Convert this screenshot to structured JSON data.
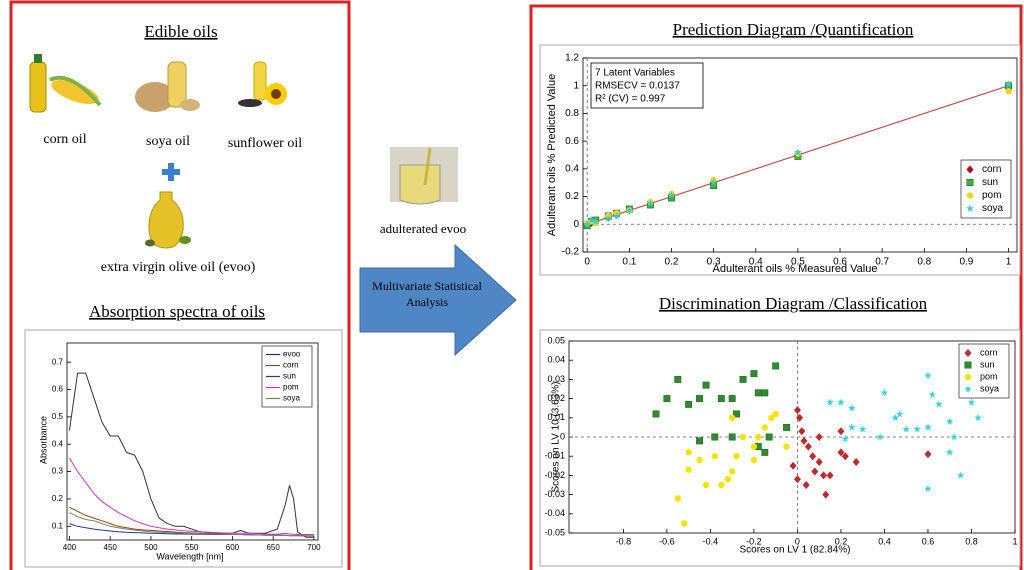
{
  "left_panel": {
    "title": "Edible oils",
    "items": [
      {
        "label": "corn oil"
      },
      {
        "label": "soya oil"
      },
      {
        "label": "sunflower oil"
      }
    ],
    "evoo_label": "extra virgin olive oil (evoo)",
    "spectra_title": "Absorption spectra of oils"
  },
  "middle": {
    "sample_label": "adulterated evoo",
    "arrow_label": "Multivariate Statistical Analysis"
  },
  "right_panel": {
    "prediction_title": "Prediction Diagram /Quantification",
    "discrimination_title": "Discrimination Diagram /Classification"
  },
  "chart_data": [
    {
      "type": "line",
      "x_label": "Wavelength [nm]",
      "y_label": "Absorbance",
      "x": [
        400,
        410,
        420,
        430,
        440,
        450,
        460,
        470,
        480,
        490,
        500,
        510,
        520,
        530,
        540,
        560,
        580,
        600,
        610,
        620,
        640,
        655,
        665,
        670,
        675,
        680,
        690,
        700
      ],
      "xlim": [
        397,
        705
      ],
      "ylim": [
        0.05,
        0.77
      ],
      "xticks": [
        400,
        450,
        500,
        550,
        600,
        650,
        700
      ],
      "yticks": [
        0.1,
        0.2,
        0.3,
        0.4,
        0.5,
        0.6,
        0.7
      ],
      "legend": "upper right",
      "series": [
        {
          "name": "evoo",
          "color": "#333333",
          "values": [
            0.45,
            0.66,
            0.66,
            0.57,
            0.48,
            0.43,
            0.43,
            0.37,
            0.36,
            0.3,
            0.2,
            0.13,
            0.11,
            0.1,
            0.1,
            0.08,
            0.075,
            0.075,
            0.085,
            0.075,
            0.075,
            0.09,
            0.18,
            0.25,
            0.2,
            0.08,
            0.06,
            0.06
          ]
        },
        {
          "name": "corn",
          "color": "#8b4513",
          "values": [
            0.17,
            0.155,
            0.14,
            0.13,
            0.12,
            0.11,
            0.1,
            0.095,
            0.09,
            0.087,
            0.085,
            0.083,
            0.081,
            0.079,
            0.077,
            0.075,
            0.073,
            0.07,
            0.07,
            0.069,
            0.068,
            0.067,
            0.067,
            0.066,
            0.066,
            0.066,
            0.065,
            0.065
          ]
        },
        {
          "name": "sun",
          "color": "#1f3a93",
          "values": [
            0.11,
            0.1,
            0.095,
            0.09,
            0.086,
            0.083,
            0.08,
            0.078,
            0.077,
            0.076,
            0.075,
            0.074,
            0.073,
            0.072,
            0.072,
            0.071,
            0.07,
            0.07,
            0.07,
            0.069,
            0.068,
            0.067,
            0.067,
            0.066,
            0.066,
            0.066,
            0.065,
            0.065
          ]
        },
        {
          "name": "pom",
          "color": "#cc33cc",
          "values": [
            0.35,
            0.3,
            0.26,
            0.22,
            0.19,
            0.17,
            0.15,
            0.135,
            0.12,
            0.11,
            0.1,
            0.095,
            0.09,
            0.087,
            0.084,
            0.08,
            0.077,
            0.075,
            0.075,
            0.074,
            0.072,
            0.071,
            0.075,
            0.072,
            0.071,
            0.07,
            0.07,
            0.07
          ]
        },
        {
          "name": "soya",
          "color": "#808060",
          "values": [
            0.15,
            0.135,
            0.125,
            0.12,
            0.11,
            0.1,
            0.095,
            0.09,
            0.086,
            0.083,
            0.08,
            0.078,
            0.077,
            0.076,
            0.075,
            0.073,
            0.072,
            0.07,
            0.07,
            0.069,
            0.068,
            0.067,
            0.067,
            0.066,
            0.066,
            0.066,
            0.065,
            0.065
          ]
        }
      ]
    },
    {
      "type": "scatter",
      "x_label": "Adulterant oils % Measured Value",
      "y_label": "Adulterant oils % Predicted Value",
      "annotation": [
        "7 Latent Variables",
        "RMSECV = 0.0137",
        "R² (CV) = 0.997"
      ],
      "xlim": [
        -0.01,
        1.02
      ],
      "ylim": [
        -0.2,
        1.2
      ],
      "xticks": [
        0,
        0.1,
        0.2,
        0.3,
        0.4,
        0.5,
        0.6,
        0.7,
        0.8,
        0.9,
        1
      ],
      "yticks": [
        -0.2,
        0,
        0.2,
        0.4,
        0.6,
        0.8,
        1,
        1.2
      ],
      "legend": "lower right",
      "zero_lines": true,
      "reference_line": {
        "color": "#c0504d",
        "x": [
          0,
          1
        ],
        "values": [
          0,
          1
        ]
      },
      "series": [
        {
          "name": "corn",
          "color": "#c00000",
          "marker": "diamond",
          "x": [
            0,
            0.01,
            0.02,
            0.05,
            0.07,
            0.1,
            0.15,
            0.2,
            0.3,
            0.5,
            1
          ],
          "values": [
            0,
            0.01,
            0.02,
            0.05,
            0.07,
            0.1,
            0.15,
            0.2,
            0.31,
            0.5,
            0.98
          ]
        },
        {
          "name": "sun",
          "color": "#3cb043",
          "marker": "square",
          "x": [
            0,
            0.01,
            0.02,
            0.05,
            0.07,
            0.1,
            0.15,
            0.2,
            0.3,
            0.5,
            1
          ],
          "values": [
            -0.01,
            0.02,
            0.03,
            0.06,
            0.08,
            0.11,
            0.14,
            0.19,
            0.28,
            0.49,
            1.0
          ]
        },
        {
          "name": "pom",
          "color": "#f2d21b",
          "marker": "circle",
          "x": [
            0,
            0.01,
            0.02,
            0.05,
            0.07,
            0.1,
            0.15,
            0.2,
            0.3,
            0.5,
            1
          ],
          "values": [
            0.01,
            0.02,
            0.01,
            0.06,
            0.08,
            0.1,
            0.16,
            0.22,
            0.32,
            0.51,
            0.96
          ]
        },
        {
          "name": "soya",
          "color": "#33cccc",
          "marker": "star",
          "x": [
            0,
            0.01,
            0.02,
            0.05,
            0.07,
            0.1,
            0.15,
            0.2,
            0.3,
            0.5,
            1
          ],
          "values": [
            0,
            0.03,
            0.02,
            0.04,
            0.06,
            0.1,
            0.15,
            0.21,
            0.3,
            0.52,
            1.01
          ]
        }
      ]
    },
    {
      "type": "scatter",
      "x_label": "Scores on LV 1 (82.84%)",
      "y_label": "Scores on LV 10 (3.63%)",
      "xlim": [
        -1.05,
        1.0
      ],
      "ylim": [
        -0.05,
        0.05
      ],
      "xticks": [
        -0.8,
        -0.6,
        -0.4,
        -0.2,
        0,
        0.2,
        0.4,
        0.6,
        0.8,
        1
      ],
      "yticks": [
        -0.05,
        -0.04,
        -0.03,
        -0.02,
        -0.01,
        0,
        0.01,
        0.02,
        0.03,
        0.04,
        0.05
      ],
      "legend": "upper right",
      "zero_lines": true,
      "series": [
        {
          "name": "corn",
          "color": "#c0292b",
          "marker": "diamond",
          "x": [
            0,
            0.01,
            0.02,
            0.03,
            0.05,
            0.07,
            0.1,
            0.12,
            0.15,
            0.2,
            0.22,
            0.27,
            0.6,
            0,
            0.04,
            0.13,
            0.2,
            0.1,
            -0.02,
            0.08
          ],
          "values": [
            0.014,
            0.01,
            0.003,
            -0.002,
            -0.005,
            -0.01,
            -0.013,
            -0.02,
            -0.02,
            -0.008,
            -0.01,
            -0.013,
            -0.009,
            -0.022,
            -0.025,
            -0.03,
            0.003,
            0,
            -0.015,
            -0.018
          ]
        },
        {
          "name": "sun",
          "color": "#2e8b2e",
          "marker": "square",
          "x": [
            -0.65,
            -0.6,
            -0.55,
            -0.5,
            -0.45,
            -0.42,
            -0.35,
            -0.3,
            -0.28,
            -0.25,
            -0.2,
            -0.18,
            -0.15,
            -0.1,
            -0.45,
            -0.38,
            -0.3,
            -0.18,
            -0.15,
            -0.13,
            -0.05
          ],
          "values": [
            0.012,
            0.02,
            0.03,
            0.017,
            0.02,
            0.027,
            0.02,
            0.02,
            0.012,
            0.03,
            0.033,
            0.023,
            0.023,
            0.037,
            -0.002,
            0,
            0,
            -0.005,
            -0.008,
            0,
            0.005
          ]
        },
        {
          "name": "pom",
          "color": "#f5e400",
          "marker": "circle",
          "x": [
            -0.52,
            -0.55,
            -0.5,
            -0.5,
            -0.45,
            -0.42,
            -0.38,
            -0.35,
            -0.32,
            -0.3,
            -0.28,
            -0.25,
            -0.2,
            -0.18,
            -0.15,
            -0.1,
            -0.05,
            -0.3,
            -0.2,
            -0.12
          ],
          "values": [
            -0.045,
            -0.032,
            -0.017,
            -0.008,
            -0.012,
            -0.025,
            -0.01,
            -0.025,
            -0.022,
            -0.018,
            -0.01,
            0,
            -0.005,
            0,
            0.005,
            0.012,
            -0.005,
            0.01,
            -0.012,
            0.01
          ]
        },
        {
          "name": "soya",
          "color": "#33d6e0",
          "marker": "star",
          "x": [
            0.15,
            0.2,
            0.25,
            0.25,
            0.3,
            0.38,
            0.4,
            0.45,
            0.47,
            0.5,
            0.55,
            0.6,
            0.62,
            0.6,
            0.65,
            0.7,
            0.72,
            0.75,
            0.8,
            0.83,
            0.6,
            0.7,
            0.22
          ],
          "values": [
            0.018,
            0.018,
            0.015,
            0.005,
            0.004,
            0,
            0.023,
            0.01,
            0.012,
            0.004,
            0.004,
            0.032,
            0.022,
            0.005,
            0.017,
            0.008,
            0,
            -0.02,
            0.018,
            0.01,
            -0.027,
            -0.008,
            -0.001
          ]
        }
      ]
    }
  ]
}
